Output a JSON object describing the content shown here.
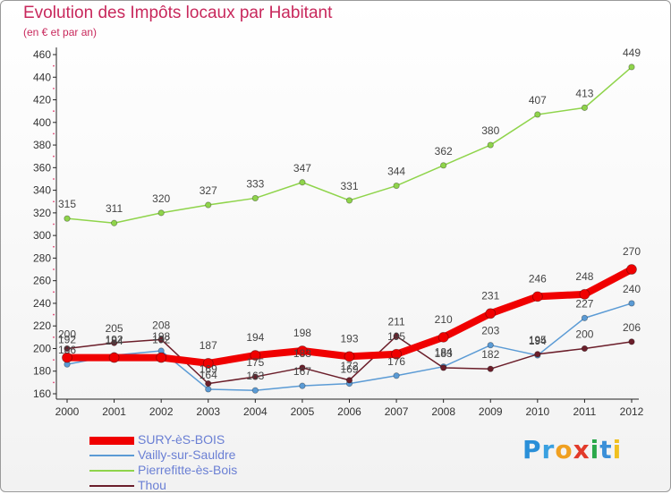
{
  "page": {
    "title": "Evolution des Impôts locaux par Habitant",
    "subtitle": "(en € et par an)",
    "logo": {
      "text": "Proxiti",
      "letter_colors": [
        "#2a8fd8",
        "#3aa0e0",
        "#f0a020",
        "#e23a2a",
        "#2aa84a",
        "#3a8fd8",
        "#f0c020"
      ]
    }
  },
  "chart_data": {
    "type": "line",
    "x": [
      "2000",
      "2001",
      "2002",
      "2003",
      "2004",
      "2005",
      "2006",
      "2007",
      "2008",
      "2009",
      "2010",
      "2011",
      "2012"
    ],
    "ylim": [
      160,
      460
    ],
    "yticks": [
      160,
      180,
      200,
      220,
      240,
      260,
      280,
      300,
      320,
      340,
      360,
      380,
      400,
      420,
      440,
      460
    ],
    "grid": false,
    "legend_position": "bottom-left",
    "series": [
      {
        "name": "SURY-èS-BOIS",
        "color": "#f00000",
        "values": [
          192,
          192,
          192,
          187,
          194,
          198,
          193,
          195,
          210,
          231,
          246,
          248,
          270
        ]
      },
      {
        "name": "Vailly-sur-Sauldre",
        "color": "#5b9bd5",
        "values": [
          186,
          194,
          198,
          164,
          163,
          167,
          169,
          176,
          184,
          203,
          194,
          227,
          240
        ]
      },
      {
        "name": "Pierrefitte-ès-Bois",
        "color": "#8fd44b",
        "values": [
          315,
          311,
          320,
          327,
          333,
          347,
          331,
          344,
          362,
          380,
          407,
          413,
          449
        ]
      },
      {
        "name": "Thou",
        "color": "#6b1e2a",
        "values": [
          200,
          205,
          208,
          169,
          175,
          183,
          172,
          211,
          183,
          182,
          195,
          200,
          206
        ]
      }
    ]
  }
}
